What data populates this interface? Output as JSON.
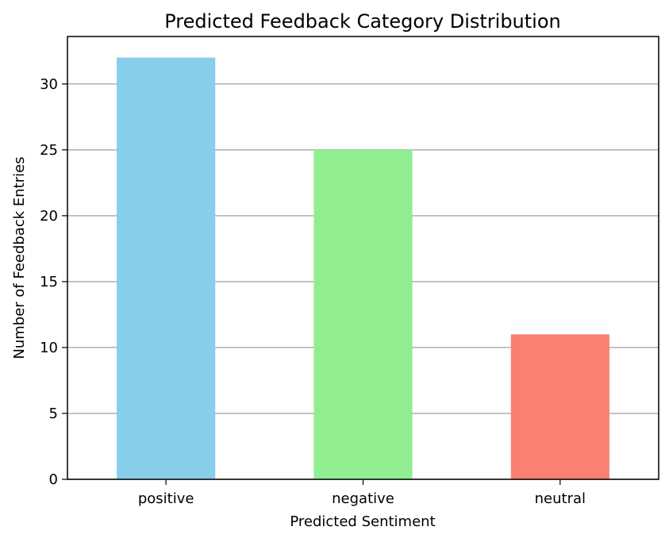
{
  "chart_data": {
    "type": "bar",
    "title": "Predicted Feedback Category Distribution",
    "xlabel": "Predicted Sentiment",
    "ylabel": "Number of Feedback Entries",
    "categories": [
      "positive",
      "negative",
      "neutral"
    ],
    "values": [
      32,
      25,
      11
    ],
    "colors": [
      "#87ceeb",
      "#90ee90",
      "#fa8072"
    ],
    "ylim": [
      0,
      33.6
    ],
    "yticks": [
      0,
      5,
      10,
      15,
      20,
      25,
      30
    ],
    "grid": "y",
    "legend": "none"
  }
}
